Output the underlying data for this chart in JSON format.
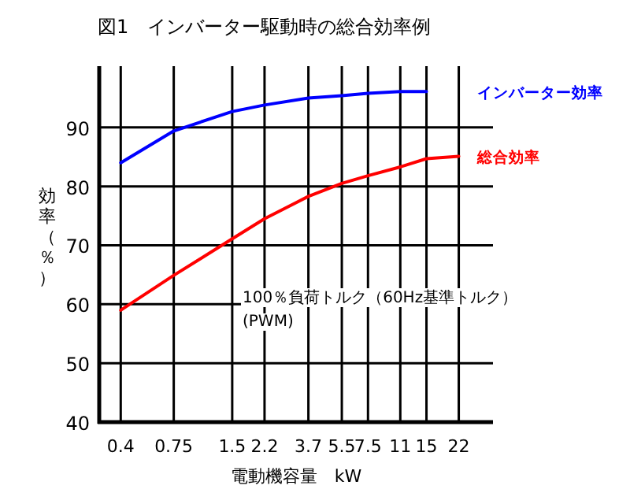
{
  "chart_data": {
    "type": "line",
    "title": "図1　インバーター駆動時の総合効率例",
    "xlabel": "電動機容量　kW",
    "ylabel": "効率（％）",
    "x": [
      0.4,
      0.75,
      1.5,
      2.2,
      3.7,
      5.5,
      7.5,
      11,
      15,
      22
    ],
    "series": [
      {
        "name": "インバーター効率",
        "color": "#0000ff",
        "values": [
          84,
          89.4,
          92.7,
          93.8,
          95,
          95.4,
          95.8,
          96.1,
          96.1,
          null
        ]
      },
      {
        "name": "総合効率",
        "color": "#ff0000",
        "values": [
          59,
          64.9,
          71.1,
          74.5,
          78.3,
          80.5,
          81.8,
          83.3,
          84.7,
          85.1
        ]
      }
    ],
    "log": "x",
    "xlim": [
      0.31,
      33
    ],
    "ylim": [
      40,
      100.4
    ],
    "xticks": [
      0.4,
      0.75,
      1.5,
      2.2,
      3.7,
      5.5,
      7.5,
      11,
      15,
      22
    ],
    "yticks": [
      40,
      50,
      60,
      70,
      80,
      90
    ],
    "grid": true,
    "marker": "none",
    "line_style": "solid",
    "annotations": [
      "100％負荷トルク（60Hz基準トルク）",
      "(PWM)"
    ]
  }
}
